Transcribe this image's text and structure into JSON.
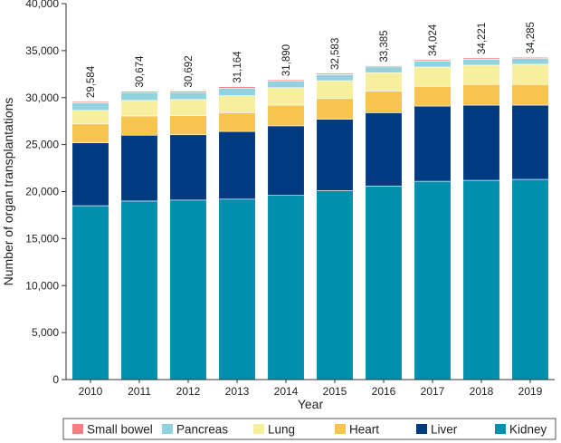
{
  "chart_data": {
    "type": "bar",
    "stacked": true,
    "xlabel": "Year",
    "ylabel": "Number of organ transplantations",
    "ylim": [
      0,
      40000
    ],
    "yticks": [
      0,
      5000,
      10000,
      15000,
      20000,
      25000,
      30000,
      35000,
      40000
    ],
    "ytick_labels": [
      "0",
      "5,000",
      "10,000",
      "15,000",
      "20,000",
      "25,000",
      "30,000",
      "35,000",
      "40,000"
    ],
    "categories": [
      "2010",
      "2011",
      "2012",
      "2013",
      "2014",
      "2015",
      "2016",
      "2017",
      "2018",
      "2019"
    ],
    "totals": [
      29584,
      30674,
      30692,
      31164,
      31890,
      32583,
      33385,
      34024,
      34221,
      34285
    ],
    "total_labels": [
      "29,584",
      "30,674",
      "30,692",
      "31,164",
      "31,890",
      "32,583",
      "33,385",
      "34,024",
      "34,221",
      "34,285"
    ],
    "series": [
      {
        "name": "Kidney",
        "color": "#0090ae",
        "values": [
          18500,
          19000,
          19100,
          19200,
          19600,
          20100,
          20600,
          21100,
          21200,
          21300
        ]
      },
      {
        "name": "Liver",
        "color": "#003a80",
        "values": [
          6700,
          7000,
          6950,
          7200,
          7400,
          7600,
          7800,
          8000,
          8000,
          7900
        ]
      },
      {
        "name": "Heart",
        "color": "#f7c44f",
        "values": [
          2000,
          2050,
          2050,
          2000,
          2200,
          2200,
          2300,
          2100,
          2200,
          2200
        ]
      },
      {
        "name": "Lung",
        "color": "#f7ef9c",
        "values": [
          1450,
          1650,
          1700,
          1800,
          1850,
          1900,
          1950,
          2050,
          2050,
          2150
        ]
      },
      {
        "name": "Pancreas",
        "color": "#8fd3de",
        "values": [
          800,
          850,
          750,
          800,
          700,
          650,
          620,
          640,
          640,
          610
        ]
      },
      {
        "name": "Small bowel",
        "color": "#f28080",
        "values": [
          134,
          124,
          142,
          164,
          140,
          133,
          115,
          134,
          131,
          125
        ]
      }
    ],
    "legend_position": "bottom",
    "legend_order": [
      "Small bowel",
      "Pancreas",
      "Lung",
      "Heart",
      "Liver",
      "Kidney"
    ],
    "grid": false
  }
}
